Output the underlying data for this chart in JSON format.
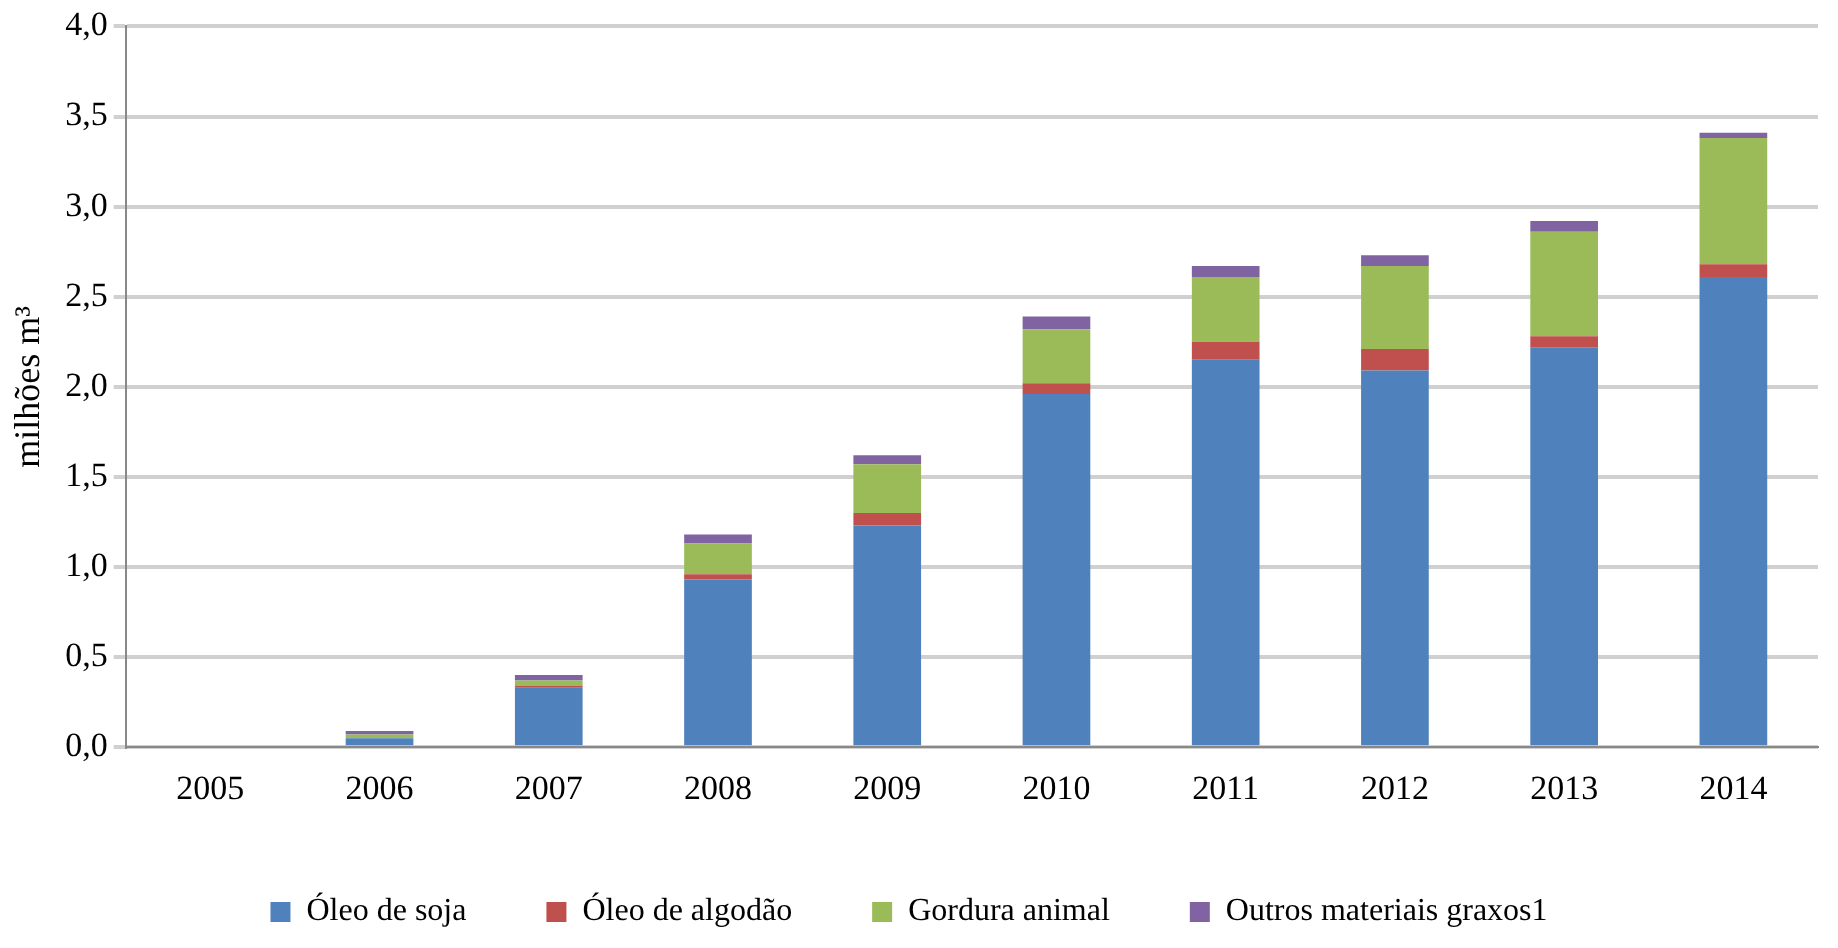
{
  "chart_data": {
    "type": "bar",
    "stacked": true,
    "ylabel": "milhões m³",
    "categories": [
      "2005",
      "2006",
      "2007",
      "2008",
      "2009",
      "2010",
      "2011",
      "2012",
      "2013",
      "2014"
    ],
    "series": [
      {
        "name": "Óleo de soja",
        "color": "#4f81bd",
        "values": [
          0,
          0.05,
          0.33,
          0.93,
          1.23,
          1.96,
          2.15,
          2.09,
          2.22,
          2.61
        ]
      },
      {
        "name": "Óleo de algodão",
        "color": "#c0504d",
        "values": [
          0,
          0,
          0.01,
          0.03,
          0.07,
          0.06,
          0.1,
          0.12,
          0.06,
          0.07
        ]
      },
      {
        "name": "Gordura animal",
        "color": "#9bbb59",
        "values": [
          0,
          0.02,
          0.03,
          0.17,
          0.27,
          0.3,
          0.36,
          0.46,
          0.58,
          0.7
        ]
      },
      {
        "name": "Outros materiais graxos1",
        "color": "#8064a2",
        "values": [
          0,
          0.02,
          0.03,
          0.05,
          0.05,
          0.07,
          0.06,
          0.06,
          0.06,
          0.03
        ]
      }
    ],
    "ylim": [
      0,
      4
    ],
    "yticks": [
      {
        "value": 0,
        "label": "0,0"
      },
      {
        "value": 0.5,
        "label": "0,5"
      },
      {
        "value": 1,
        "label": "1,0"
      },
      {
        "value": 1.5,
        "label": "1,5"
      },
      {
        "value": 2,
        "label": "2,0"
      },
      {
        "value": 2.5,
        "label": "2,5"
      },
      {
        "value": 3,
        "label": "3,0"
      },
      {
        "value": 3.5,
        "label": "3,5"
      },
      {
        "value": 4,
        "label": "4,0"
      }
    ],
    "grid": "y",
    "legend": "bottom"
  }
}
